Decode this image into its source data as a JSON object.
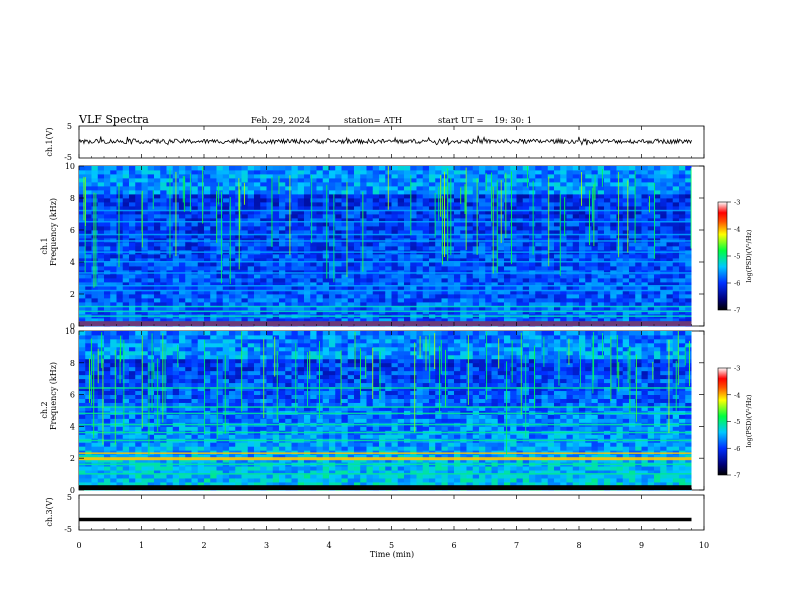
{
  "header": {
    "title": "VLF  Spectra",
    "date": "Feb. 29, 2024",
    "station": "station= ATH",
    "start_label": "start  UT  =",
    "start_time": "19: 30: 1"
  },
  "chart_data": [
    {
      "type": "line",
      "panel": "ch1-waveform",
      "ylabel": "ch.1(V)",
      "ylim": [
        -5,
        5
      ],
      "yticks": [
        "5",
        "-5"
      ],
      "xlim": [
        0,
        10
      ],
      "mean_level": 0.2,
      "trace_color": "#000000"
    },
    {
      "type": "heatmap",
      "panel": "ch1-spectrogram",
      "ylabel": "ch.1\nFrequency  (kHz)",
      "ylabel_line1": "ch.1",
      "ylabel_line2": "Frequency  (kHz)",
      "ylim": [
        0,
        10
      ],
      "yticks": [
        "0",
        "2",
        "4",
        "6",
        "8",
        "10"
      ],
      "xlim": [
        0,
        9.8
      ],
      "colorbar": {
        "label": "log(PSD)(V²/Hz)",
        "ticks": [
          "-3",
          "-4",
          "-5",
          "-6",
          "-7"
        ],
        "range": [
          -7,
          -3
        ]
      },
      "bands_khz": [
        0.6,
        0.9,
        1.2,
        2.2,
        2.5,
        3.3,
        4.0,
        4.6,
        5.3,
        5.7,
        6.5,
        7.2
      ]
    },
    {
      "type": "heatmap",
      "panel": "ch2-spectrogram",
      "ylabel_line1": "ch.2",
      "ylabel_line2": "Frequency  (kHz)",
      "ylim": [
        0,
        10
      ],
      "yticks": [
        "0",
        "2",
        "4",
        "6",
        "8",
        "10"
      ],
      "xlim": [
        0,
        9.8
      ],
      "colorbar": {
        "label": "log(PSD)(V²/Hz)",
        "ticks": [
          "-3",
          "-4",
          "-5",
          "-6",
          "-7"
        ],
        "range": [
          -7,
          -3
        ]
      },
      "bands_khz": [
        1.0,
        1.6,
        2.0,
        2.3,
        3.1,
        3.6,
        4.1,
        4.8,
        5.2,
        6.4
      ]
    },
    {
      "type": "line",
      "panel": "ch3-waveform",
      "ylabel": "ch.3(V)",
      "ylim": [
        -5,
        5
      ],
      "yticks": [
        "5",
        "-5"
      ],
      "xlim": [
        0,
        10
      ],
      "mean_level": -2,
      "trace_color": "#000000"
    }
  ],
  "xaxis": {
    "label": "Time  (min)",
    "ticks": [
      "0",
      "1",
      "2",
      "3",
      "4",
      "5",
      "6",
      "7",
      "8",
      "9",
      "10"
    ],
    "range": [
      0,
      10
    ]
  }
}
